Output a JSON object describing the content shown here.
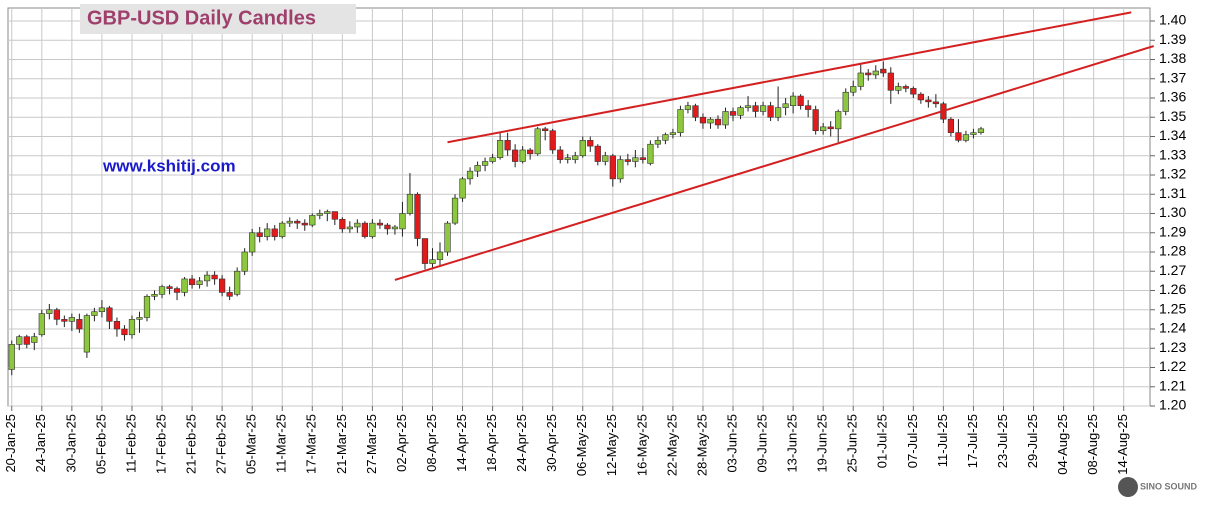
{
  "chart_data": {
    "type": "candlestick",
    "title": "GBP-USD Daily Candles",
    "annotation": "www.kshitij.com",
    "watermark": "SINO SOUND",
    "up_color": "#8dc63f",
    "down_color": "#e31a1c",
    "grid": true,
    "xlim": [
      "2025-01-20",
      "2025-08-19"
    ],
    "xticks": [
      {
        "value": "2025-01-20",
        "label": "20-Jan-25"
      },
      {
        "value": "2025-01-24",
        "label": "24-Jan-25"
      },
      {
        "value": "2025-01-30",
        "label": "30-Jan-25"
      },
      {
        "value": "2025-02-05",
        "label": "05-Feb-25"
      },
      {
        "value": "2025-02-11",
        "label": "11-Feb-25"
      },
      {
        "value": "2025-02-17",
        "label": "17-Feb-25"
      },
      {
        "value": "2025-02-21",
        "label": "21-Feb-25"
      },
      {
        "value": "2025-02-27",
        "label": "27-Feb-25"
      },
      {
        "value": "2025-03-05",
        "label": "05-Mar-25"
      },
      {
        "value": "2025-03-11",
        "label": "11-Mar-25"
      },
      {
        "value": "2025-03-17",
        "label": "17-Mar-25"
      },
      {
        "value": "2025-03-21",
        "label": "21-Mar-25"
      },
      {
        "value": "2025-03-27",
        "label": "27-Mar-25"
      },
      {
        "value": "2025-04-02",
        "label": "02-Apr-25"
      },
      {
        "value": "2025-04-08",
        "label": "08-Apr-25"
      },
      {
        "value": "2025-04-14",
        "label": "14-Apr-25"
      },
      {
        "value": "2025-04-18",
        "label": "18-Apr-25"
      },
      {
        "value": "2025-04-24",
        "label": "24-Apr-25"
      },
      {
        "value": "2025-04-30",
        "label": "30-Apr-25"
      },
      {
        "value": "2025-05-06",
        "label": "06-May-25"
      },
      {
        "value": "2025-05-12",
        "label": "12-May-25"
      },
      {
        "value": "2025-05-16",
        "label": "16-May-25"
      },
      {
        "value": "2025-05-22",
        "label": "22-May-25"
      },
      {
        "value": "2025-05-28",
        "label": "28-May-25"
      },
      {
        "value": "2025-06-03",
        "label": "03-Jun-25"
      },
      {
        "value": "2025-06-09",
        "label": "09-Jun-25"
      },
      {
        "value": "2025-06-13",
        "label": "13-Jun-25"
      },
      {
        "value": "2025-06-19",
        "label": "19-Jun-25"
      },
      {
        "value": "2025-06-25",
        "label": "25-Jun-25"
      },
      {
        "value": "2025-07-01",
        "label": "01-Jul-25"
      },
      {
        "value": "2025-07-07",
        "label": "07-Jul-25"
      },
      {
        "value": "2025-07-11",
        "label": "11-Jul-25"
      },
      {
        "value": "2025-07-17",
        "label": "17-Jul-25"
      },
      {
        "value": "2025-07-23",
        "label": "23-Jul-25"
      },
      {
        "value": "2025-07-29",
        "label": "29-Jul-25"
      },
      {
        "value": "2025-08-04",
        "label": "04-Aug-25"
      },
      {
        "value": "2025-08-08",
        "label": "08-Aug-25"
      },
      {
        "value": "2025-08-14",
        "label": "14-Aug-25"
      }
    ],
    "ylim": [
      1.2,
      1.4
    ],
    "yticks": [
      {
        "value": 1.2,
        "label": "1.20"
      },
      1.21,
      1.22,
      1.23,
      1.24,
      1.25,
      1.26,
      1.27,
      1.28,
      1.29,
      {
        "value": 1.3,
        "label": "1.30"
      },
      1.31,
      1.32,
      1.33,
      1.34,
      1.35,
      1.36,
      1.37,
      1.38,
      1.39,
      {
        "value": 1.4,
        "label": "1.40"
      }
    ],
    "x": [
      "2025-01-20",
      "2025-01-21",
      "2025-01-22",
      "2025-01-23",
      "2025-01-24",
      "2025-01-27",
      "2025-01-28",
      "2025-01-29",
      "2025-01-30",
      "2025-01-31",
      "2025-02-03",
      "2025-02-04",
      "2025-02-05",
      "2025-02-06",
      "2025-02-07",
      "2025-02-10",
      "2025-02-11",
      "2025-02-12",
      "2025-02-13",
      "2025-02-14",
      "2025-02-17",
      "2025-02-18",
      "2025-02-19",
      "2025-02-20",
      "2025-02-21",
      "2025-02-24",
      "2025-02-25",
      "2025-02-26",
      "2025-02-27",
      "2025-02-28",
      "2025-03-03",
      "2025-03-04",
      "2025-03-05",
      "2025-03-06",
      "2025-03-07",
      "2025-03-10",
      "2025-03-11",
      "2025-03-12",
      "2025-03-13",
      "2025-03-14",
      "2025-03-17",
      "2025-03-18",
      "2025-03-19",
      "2025-03-20",
      "2025-03-21",
      "2025-03-24",
      "2025-03-25",
      "2025-03-26",
      "2025-03-27",
      "2025-03-28",
      "2025-03-31",
      "2025-04-01",
      "2025-04-02",
      "2025-04-03",
      "2025-04-04",
      "2025-04-07",
      "2025-04-08",
      "2025-04-09",
      "2025-04-10",
      "2025-04-11",
      "2025-04-14",
      "2025-04-15",
      "2025-04-16",
      "2025-04-17",
      "2025-04-18",
      "2025-04-21",
      "2025-04-22",
      "2025-04-23",
      "2025-04-24",
      "2025-04-25",
      "2025-04-28",
      "2025-04-29",
      "2025-04-30",
      "2025-05-01",
      "2025-05-02",
      "2025-05-05",
      "2025-05-06",
      "2025-05-07",
      "2025-05-08",
      "2025-05-09",
      "2025-05-12",
      "2025-05-13",
      "2025-05-14",
      "2025-05-15",
      "2025-05-16",
      "2025-05-19",
      "2025-05-20",
      "2025-05-21",
      "2025-05-22",
      "2025-05-23",
      "2025-05-26",
      "2025-05-27",
      "2025-05-28",
      "2025-05-29",
      "2025-05-30",
      "2025-06-02",
      "2025-06-03",
      "2025-06-04",
      "2025-06-05",
      "2025-06-06",
      "2025-06-09",
      "2025-06-10",
      "2025-06-11",
      "2025-06-12",
      "2025-06-13",
      "2025-06-16",
      "2025-06-17",
      "2025-06-18",
      "2025-06-19",
      "2025-06-20",
      "2025-06-23",
      "2025-06-24",
      "2025-06-25",
      "2025-06-26",
      "2025-06-27",
      "2025-06-30",
      "2025-07-01",
      "2025-07-02",
      "2025-07-03",
      "2025-07-04",
      "2025-07-07",
      "2025-07-08",
      "2025-07-09",
      "2025-07-10",
      "2025-07-11",
      "2025-07-14",
      "2025-07-15",
      "2025-07-16",
      "2025-07-17",
      "2025-07-18"
    ],
    "open": [
      1.219,
      1.232,
      1.236,
      1.233,
      1.237,
      1.248,
      1.25,
      1.245,
      1.244,
      1.245,
      1.228,
      1.247,
      1.249,
      1.251,
      1.244,
      1.24,
      1.237,
      1.245,
      1.246,
      1.257,
      1.258,
      1.262,
      1.261,
      1.259,
      1.266,
      1.263,
      1.265,
      1.268,
      1.266,
      1.259,
      1.258,
      1.27,
      1.28,
      1.29,
      1.288,
      1.292,
      1.288,
      1.295,
      1.296,
      1.295,
      1.294,
      1.299,
      1.3,
      1.301,
      1.297,
      1.292,
      1.293,
      1.295,
      1.288,
      1.295,
      1.294,
      1.292,
      1.292,
      1.3,
      1.31,
      1.287,
      1.274,
      1.276,
      1.28,
      1.295,
      1.308,
      1.318,
      1.322,
      1.325,
      1.327,
      1.329,
      1.338,
      1.333,
      1.327,
      1.333,
      1.331,
      1.344,
      1.343,
      1.333,
      1.328,
      1.328,
      1.33,
      1.338,
      1.335,
      1.327,
      1.33,
      1.318,
      1.328,
      1.327,
      1.329,
      1.326,
      1.336,
      1.338,
      1.341,
      1.342,
      1.354,
      1.356,
      1.35,
      1.347,
      1.349,
      1.346,
      1.353,
      1.351,
      1.355,
      1.356,
      1.353,
      1.356,
      1.35,
      1.355,
      1.356,
      1.361,
      1.356,
      1.354,
      1.343,
      1.345,
      1.344,
      1.353,
      1.363,
      1.366,
      1.373,
      1.372,
      1.375,
      1.373,
      1.364,
      1.366,
      1.365,
      1.362,
      1.359,
      1.358,
      1.357,
      1.349,
      1.342,
      1.338,
      1.341,
      1.342
    ],
    "high": [
      1.234,
      1.237,
      1.237,
      1.238,
      1.25,
      1.253,
      1.251,
      1.247,
      1.248,
      1.248,
      1.248,
      1.251,
      1.255,
      1.252,
      1.246,
      1.242,
      1.247,
      1.249,
      1.258,
      1.26,
      1.263,
      1.263,
      1.262,
      1.267,
      1.268,
      1.267,
      1.27,
      1.27,
      1.268,
      1.262,
      1.272,
      1.282,
      1.292,
      1.293,
      1.295,
      1.294,
      1.296,
      1.298,
      1.297,
      1.297,
      1.3,
      1.302,
      1.302,
      1.301,
      1.298,
      1.296,
      1.297,
      1.296,
      1.297,
      1.297,
      1.295,
      1.294,
      1.306,
      1.321,
      1.311,
      1.287,
      1.282,
      1.285,
      1.296,
      1.31,
      1.319,
      1.324,
      1.327,
      1.329,
      1.331,
      1.342,
      1.342,
      1.336,
      1.335,
      1.334,
      1.345,
      1.345,
      1.344,
      1.335,
      1.331,
      1.332,
      1.34,
      1.34,
      1.336,
      1.332,
      1.331,
      1.33,
      1.331,
      1.333,
      1.334,
      1.338,
      1.34,
      1.342,
      1.344,
      1.356,
      1.358,
      1.357,
      1.352,
      1.35,
      1.351,
      1.355,
      1.355,
      1.356,
      1.361,
      1.358,
      1.358,
      1.358,
      1.366,
      1.36,
      1.363,
      1.362,
      1.359,
      1.356,
      1.347,
      1.348,
      1.354,
      1.365,
      1.369,
      1.378,
      1.375,
      1.377,
      1.379,
      1.376,
      1.368,
      1.367,
      1.366,
      1.363,
      1.361,
      1.362,
      1.358,
      1.35,
      1.349,
      1.343,
      1.344,
      1.345
    ],
    "low": [
      1.216,
      1.229,
      1.23,
      1.229,
      1.236,
      1.245,
      1.242,
      1.241,
      1.239,
      1.238,
      1.225,
      1.244,
      1.246,
      1.24,
      1.236,
      1.234,
      1.235,
      1.238,
      1.244,
      1.255,
      1.256,
      1.258,
      1.255,
      1.257,
      1.261,
      1.261,
      1.262,
      1.263,
      1.257,
      1.255,
      1.257,
      1.268,
      1.278,
      1.285,
      1.286,
      1.286,
      1.287,
      1.293,
      1.292,
      1.291,
      1.293,
      1.297,
      1.296,
      1.294,
      1.29,
      1.29,
      1.29,
      1.287,
      1.287,
      1.292,
      1.289,
      1.289,
      1.288,
      1.299,
      1.283,
      1.271,
      1.271,
      1.273,
      1.278,
      1.294,
      1.306,
      1.315,
      1.319,
      1.322,
      1.326,
      1.328,
      1.33,
      1.324,
      1.326,
      1.328,
      1.33,
      1.338,
      1.331,
      1.326,
      1.326,
      1.326,
      1.329,
      1.332,
      1.325,
      1.325,
      1.314,
      1.316,
      1.325,
      1.324,
      1.326,
      1.325,
      1.334,
      1.336,
      1.339,
      1.34,
      1.352,
      1.348,
      1.344,
      1.344,
      1.344,
      1.344,
      1.348,
      1.349,
      1.353,
      1.35,
      1.351,
      1.348,
      1.348,
      1.351,
      1.352,
      1.354,
      1.35,
      1.341,
      1.341,
      1.34,
      1.337,
      1.351,
      1.361,
      1.364,
      1.369,
      1.37,
      1.371,
      1.357,
      1.362,
      1.363,
      1.36,
      1.357,
      1.355,
      1.355,
      1.347,
      1.34,
      1.337,
      1.337,
      1.339,
      1.341
    ],
    "close": [
      1.232,
      1.236,
      1.232,
      1.236,
      1.248,
      1.25,
      1.245,
      1.244,
      1.246,
      1.24,
      1.247,
      1.249,
      1.251,
      1.244,
      1.24,
      1.237,
      1.245,
      1.246,
      1.257,
      1.258,
      1.262,
      1.261,
      1.259,
      1.266,
      1.263,
      1.265,
      1.268,
      1.266,
      1.259,
      1.257,
      1.27,
      1.28,
      1.29,
      1.288,
      1.292,
      1.288,
      1.295,
      1.296,
      1.295,
      1.294,
      1.299,
      1.3,
      1.301,
      1.297,
      1.292,
      1.293,
      1.295,
      1.288,
      1.295,
      1.294,
      1.292,
      1.293,
      1.3,
      1.31,
      1.287,
      1.274,
      1.276,
      1.28,
      1.295,
      1.308,
      1.318,
      1.322,
      1.325,
      1.327,
      1.329,
      1.338,
      1.333,
      1.327,
      1.333,
      1.331,
      1.344,
      1.343,
      1.333,
      1.328,
      1.329,
      1.33,
      1.338,
      1.335,
      1.327,
      1.33,
      1.318,
      1.328,
      1.327,
      1.329,
      1.328,
      1.336,
      1.338,
      1.341,
      1.342,
      1.354,
      1.356,
      1.35,
      1.347,
      1.349,
      1.346,
      1.353,
      1.351,
      1.355,
      1.356,
      1.353,
      1.356,
      1.35,
      1.355,
      1.357,
      1.361,
      1.356,
      1.354,
      1.343,
      1.345,
      1.344,
      1.353,
      1.363,
      1.366,
      1.373,
      1.372,
      1.374,
      1.373,
      1.364,
      1.366,
      1.365,
      1.362,
      1.359,
      1.358,
      1.357,
      1.349,
      1.342,
      1.338,
      1.341,
      1.342,
      1.344
    ],
    "trendlines": [
      {
        "color": "#d42020",
        "x": [
          "2025-04-10",
          "2025-08-15"
        ],
        "y": [
          1.337,
          1.4045
        ]
      },
      {
        "color": "#d42020",
        "x": [
          "2025-04-01",
          "2025-08-20"
        ],
        "y": [
          1.2655,
          1.387
        ]
      }
    ]
  }
}
